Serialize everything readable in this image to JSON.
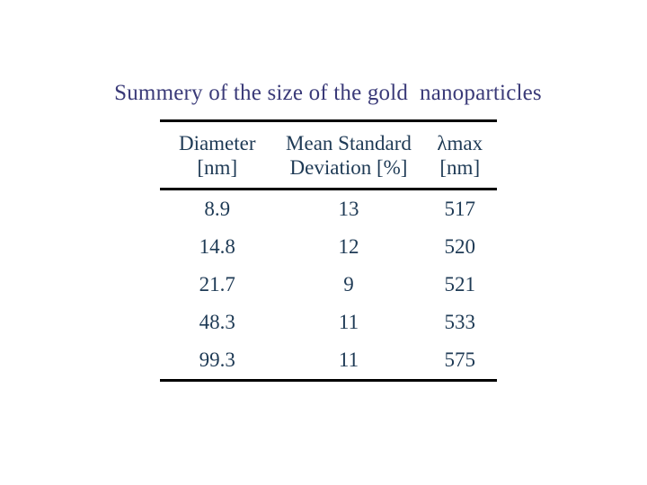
{
  "slide": {
    "title": "Summery of the size of the gold  nanoparticles",
    "colors": {
      "background": "#ffffff",
      "title_text": "#3a3a78",
      "table_text": "#1e3a55",
      "rule": "#000000"
    },
    "table": {
      "columns": [
        {
          "line1": "Diameter",
          "line2": "[nm]"
        },
        {
          "line1": "Mean Standard",
          "line2": "Deviation [%]"
        },
        {
          "line1": "λmax",
          "line2": "[nm]"
        }
      ],
      "rows": [
        [
          "8.9",
          "13",
          "517"
        ],
        [
          "14.8",
          "12",
          "520"
        ],
        [
          "21.7",
          "9",
          "521"
        ],
        [
          "48.3",
          "11",
          "533"
        ],
        [
          "99.3",
          "11",
          "575"
        ]
      ]
    }
  },
  "chart_data": {
    "type": "table",
    "title": "Summery of the size of the gold  nanoparticles",
    "columns": [
      "Diameter [nm]",
      "Mean Standard Deviation [%]",
      "λmax [nm]"
    ],
    "rows": [
      [
        8.9,
        13,
        517
      ],
      [
        14.8,
        12,
        520
      ],
      [
        21.7,
        9,
        521
      ],
      [
        48.3,
        11,
        533
      ],
      [
        99.3,
        11,
        575
      ]
    ]
  }
}
